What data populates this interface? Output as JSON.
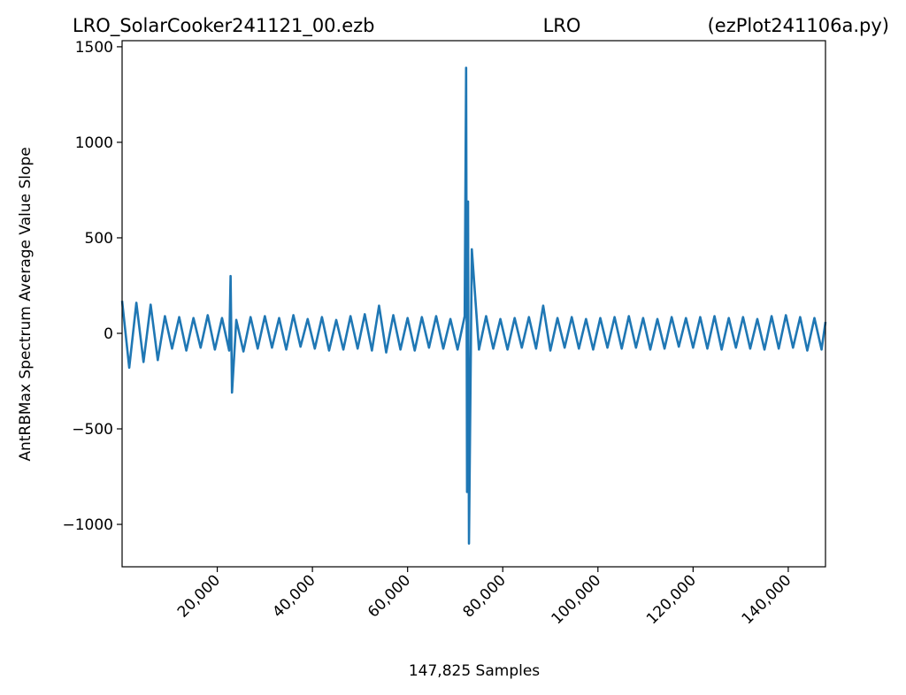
{
  "chart_data": {
    "type": "line",
    "title_parts": [
      "LRO_SolarCooker241121_00.ezb",
      "LRO",
      "(ezPlot241106a.py)"
    ],
    "x_label": "147,825 Samples",
    "y_label": "AntRBMax Spectrum Average Value Slope",
    "x": [
      0,
      1500,
      3000,
      4500,
      6000,
      7500,
      9000,
      10500,
      12000,
      13500,
      15000,
      16500,
      18000,
      19500,
      21000,
      22500,
      22800,
      23100,
      24000,
      25500,
      27000,
      28500,
      30000,
      31500,
      33000,
      34500,
      36000,
      37500,
      39000,
      40500,
      42000,
      43500,
      45000,
      46500,
      48000,
      49500,
      51000,
      52500,
      54000,
      55500,
      57000,
      58500,
      60000,
      61500,
      63000,
      64500,
      66000,
      67500,
      69000,
      70500,
      72000,
      72300,
      72500,
      72700,
      72900,
      73500,
      75000,
      76500,
      78000,
      79500,
      81000,
      82500,
      84000,
      85500,
      87000,
      88500,
      90000,
      91500,
      93000,
      94500,
      96000,
      97500,
      99000,
      100500,
      102000,
      103500,
      105000,
      106500,
      108000,
      109500,
      111000,
      112500,
      114000,
      115500,
      117000,
      118500,
      120000,
      121500,
      123000,
      124500,
      126000,
      127500,
      129000,
      130500,
      132000,
      133500,
      135000,
      136500,
      138000,
      139500,
      141000,
      142500,
      144000,
      145500,
      147000,
      147825
    ],
    "series": [
      {
        "color": "#1f77b4",
        "values": [
          170,
          -180,
          160,
          -150,
          150,
          -140,
          90,
          -80,
          85,
          -90,
          80,
          -75,
          95,
          -85,
          80,
          -90,
          300,
          -310,
          70,
          -95,
          85,
          -80,
          90,
          -75,
          80,
          -85,
          95,
          -70,
          75,
          -80,
          85,
          -90,
          70,
          -85,
          90,
          -80,
          100,
          -90,
          145,
          -100,
          95,
          -85,
          80,
          -90,
          85,
          -75,
          90,
          -80,
          75,
          -85,
          90,
          1390,
          -830,
          690,
          -1100,
          440,
          -85,
          90,
          -80,
          75,
          -85,
          80,
          -75,
          85,
          -80,
          145,
          -90,
          80,
          -75,
          85,
          -80,
          75,
          -85,
          80,
          -75,
          85,
          -80,
          90,
          -75,
          80,
          -85,
          75,
          -80,
          85,
          -70,
          80,
          -75,
          85,
          -80,
          90,
          -85,
          80,
          -75,
          85,
          -80,
          75,
          -85,
          90,
          -80,
          95,
          -75,
          85,
          -90,
          80,
          -85,
          60
        ]
      }
    ],
    "xlim": [
      0,
      147825
    ],
    "ylim": [
      -1222,
      1532
    ],
    "xticks": [
      {
        "value": 20000,
        "label": "20,000"
      },
      {
        "value": 40000,
        "label": "40,000"
      },
      {
        "value": 60000,
        "label": "60,000"
      },
      {
        "value": 80000,
        "label": "80,000"
      },
      {
        "value": 100000,
        "label": "100,000"
      },
      {
        "value": 120000,
        "label": "120,000"
      },
      {
        "value": 140000,
        "label": "140,000"
      }
    ],
    "yticks": [
      {
        "value": -1000,
        "label": "−1000"
      },
      {
        "value": -500,
        "label": "−500"
      },
      0,
      500,
      1000,
      1500
    ],
    "grid": false
  }
}
